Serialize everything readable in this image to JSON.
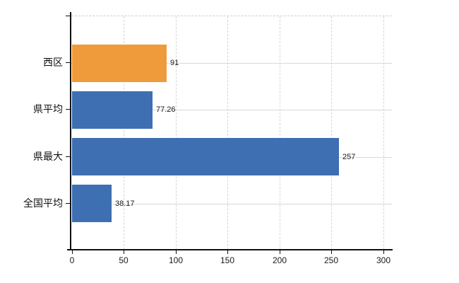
{
  "chart_data": {
    "type": "bar",
    "orientation": "horizontal",
    "title": "",
    "categories": [
      "西区",
      "県平均",
      "県最大",
      "全国平均"
    ],
    "values": [
      91,
      77.26,
      257,
      38.17
    ],
    "value_labels": [
      "91",
      "77.26",
      "257",
      "38.17"
    ],
    "bar_colors": [
      "#EF9B3B",
      "#3E6FB2",
      "#3E6FB2",
      "#3E6FB2"
    ],
    "highlight_category": "西区",
    "x_ticks": [
      0,
      50,
      100,
      150,
      200,
      250,
      300
    ],
    "x_tick_labels": [
      "0",
      "50",
      "100",
      "150",
      "200",
      "250",
      "300"
    ],
    "xlim": [
      0,
      308
    ],
    "ylabel": "",
    "xlabel": "",
    "grid": true,
    "legend_position": "none",
    "background_color": "#ffffff",
    "axis_color": "#111111",
    "hgrid_color": "#d6dad6",
    "vgrid_color": "#d2d6d2",
    "plot_border_style": "dashed-top"
  }
}
